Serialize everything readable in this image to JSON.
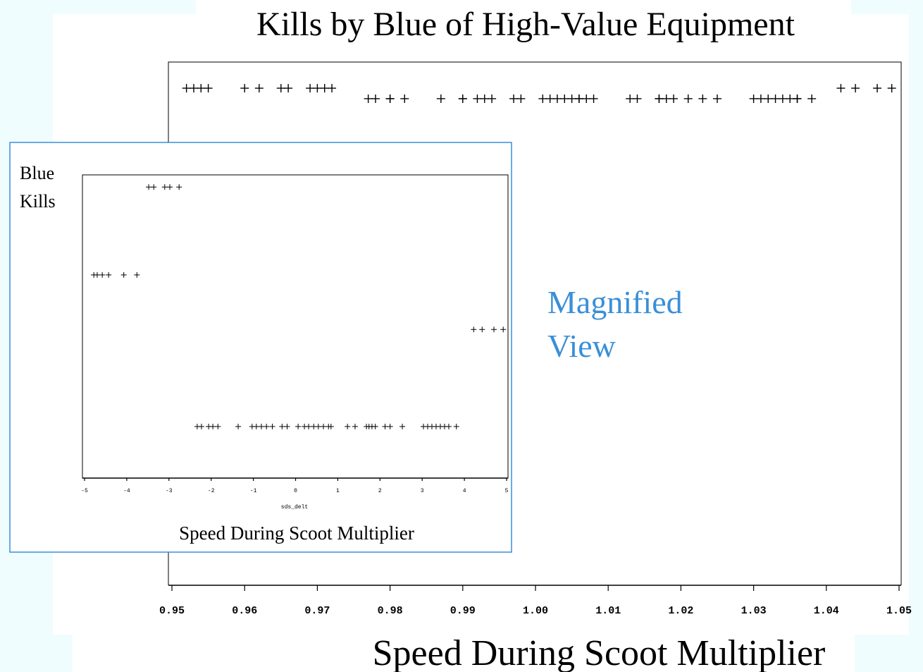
{
  "annotation": "Magnified View",
  "chart_data": [
    {
      "type": "scatter",
      "title": "Kills by Blue of High-Value Equipment",
      "xlabel": "Speed During Scoot Multiplier",
      "marker": "+",
      "color": "#000000",
      "xlim": [
        0.95,
        1.05
      ],
      "ylim": [
        0,
        100
      ],
      "xticks": [
        0.95,
        0.96,
        0.97,
        0.98,
        0.99,
        {
          "value": 1,
          "label": "1.00"
        },
        1.01,
        1.02,
        1.03,
        1.04,
        1.05
      ],
      "x": [
        0.952,
        0.953,
        0.954,
        0.955,
        0.96,
        0.962,
        0.965,
        0.966,
        0.969,
        0.97,
        0.971,
        0.972,
        1.042,
        1.044,
        1.047,
        1.049,
        0.977,
        0.978,
        0.98,
        0.98,
        0.982,
        0.987,
        0.99,
        0.99,
        0.992,
        0.993,
        0.994,
        0.997,
        0.998,
        1.001,
        1.002,
        1.003,
        1.004,
        1.005,
        1.006,
        1.006,
        1.007,
        1.008,
        1.013,
        1.014,
        1.017,
        1.017,
        1.018,
        1.019,
        1.021,
        1.023,
        1.025,
        1.03,
        1.031,
        1.032,
        1.033,
        1.034,
        1.035,
        1.036,
        1.036,
        1.038
      ],
      "y": [
        95,
        95,
        95,
        95,
        95,
        95,
        95,
        95,
        95,
        95,
        95,
        95,
        95,
        95,
        95,
        95,
        93,
        93,
        93,
        93,
        93,
        93,
        93,
        93,
        93,
        93,
        93,
        93,
        93,
        93,
        93,
        93,
        93,
        93,
        93,
        93,
        93,
        93,
        93,
        93,
        93,
        93,
        93,
        93,
        93,
        93,
        93,
        93,
        93,
        93,
        93,
        93,
        93,
        93,
        93,
        93
      ]
    },
    {
      "type": "scatter",
      "ylabel": "Blue Kills",
      "xlabel": "sds_delt",
      "subtitle": "Speed During Scoot Multiplier",
      "marker": "+",
      "color": "#000000",
      "xlim": [
        -5,
        5
      ],
      "ylim": [
        0,
        100
      ],
      "xticks": [
        -5,
        -4,
        -3,
        -2,
        -1,
        0,
        1,
        2,
        3,
        4,
        5
      ],
      "x": [
        -3.48,
        -3.36,
        -3.1,
        -2.98,
        -2.76,
        -4.78,
        -4.7,
        -4.58,
        -4.43,
        -4.07,
        -3.76,
        4.22,
        4.42,
        4.7,
        4.92,
        -2.33,
        -2.23,
        -2.06,
        -1.96,
        -1.84,
        -1.36,
        -1.03,
        -0.93,
        -0.81,
        -0.69,
        -0.55,
        -0.32,
        -0.2,
        0.06,
        0.21,
        0.31,
        0.43,
        0.54,
        0.66,
        0.78,
        0.84,
        1.23,
        1.41,
        1.68,
        1.74,
        1.81,
        1.89,
        2.12,
        2.24,
        2.53,
        3.03,
        3.13,
        3.23,
        3.33,
        3.43,
        3.53,
        3.63,
        3.81
      ],
      "y": [
        96,
        96,
        96,
        96,
        96,
        67,
        67,
        67,
        67,
        67,
        67,
        49,
        49,
        49,
        49,
        17,
        17,
        17,
        17,
        17,
        17,
        17,
        17,
        17,
        17,
        17,
        17,
        17,
        17,
        17,
        17,
        17,
        17,
        17,
        17,
        17,
        17,
        17,
        17,
        17,
        17,
        17,
        17,
        17,
        17,
        17,
        17,
        17,
        17,
        17,
        17,
        17,
        17
      ]
    }
  ]
}
